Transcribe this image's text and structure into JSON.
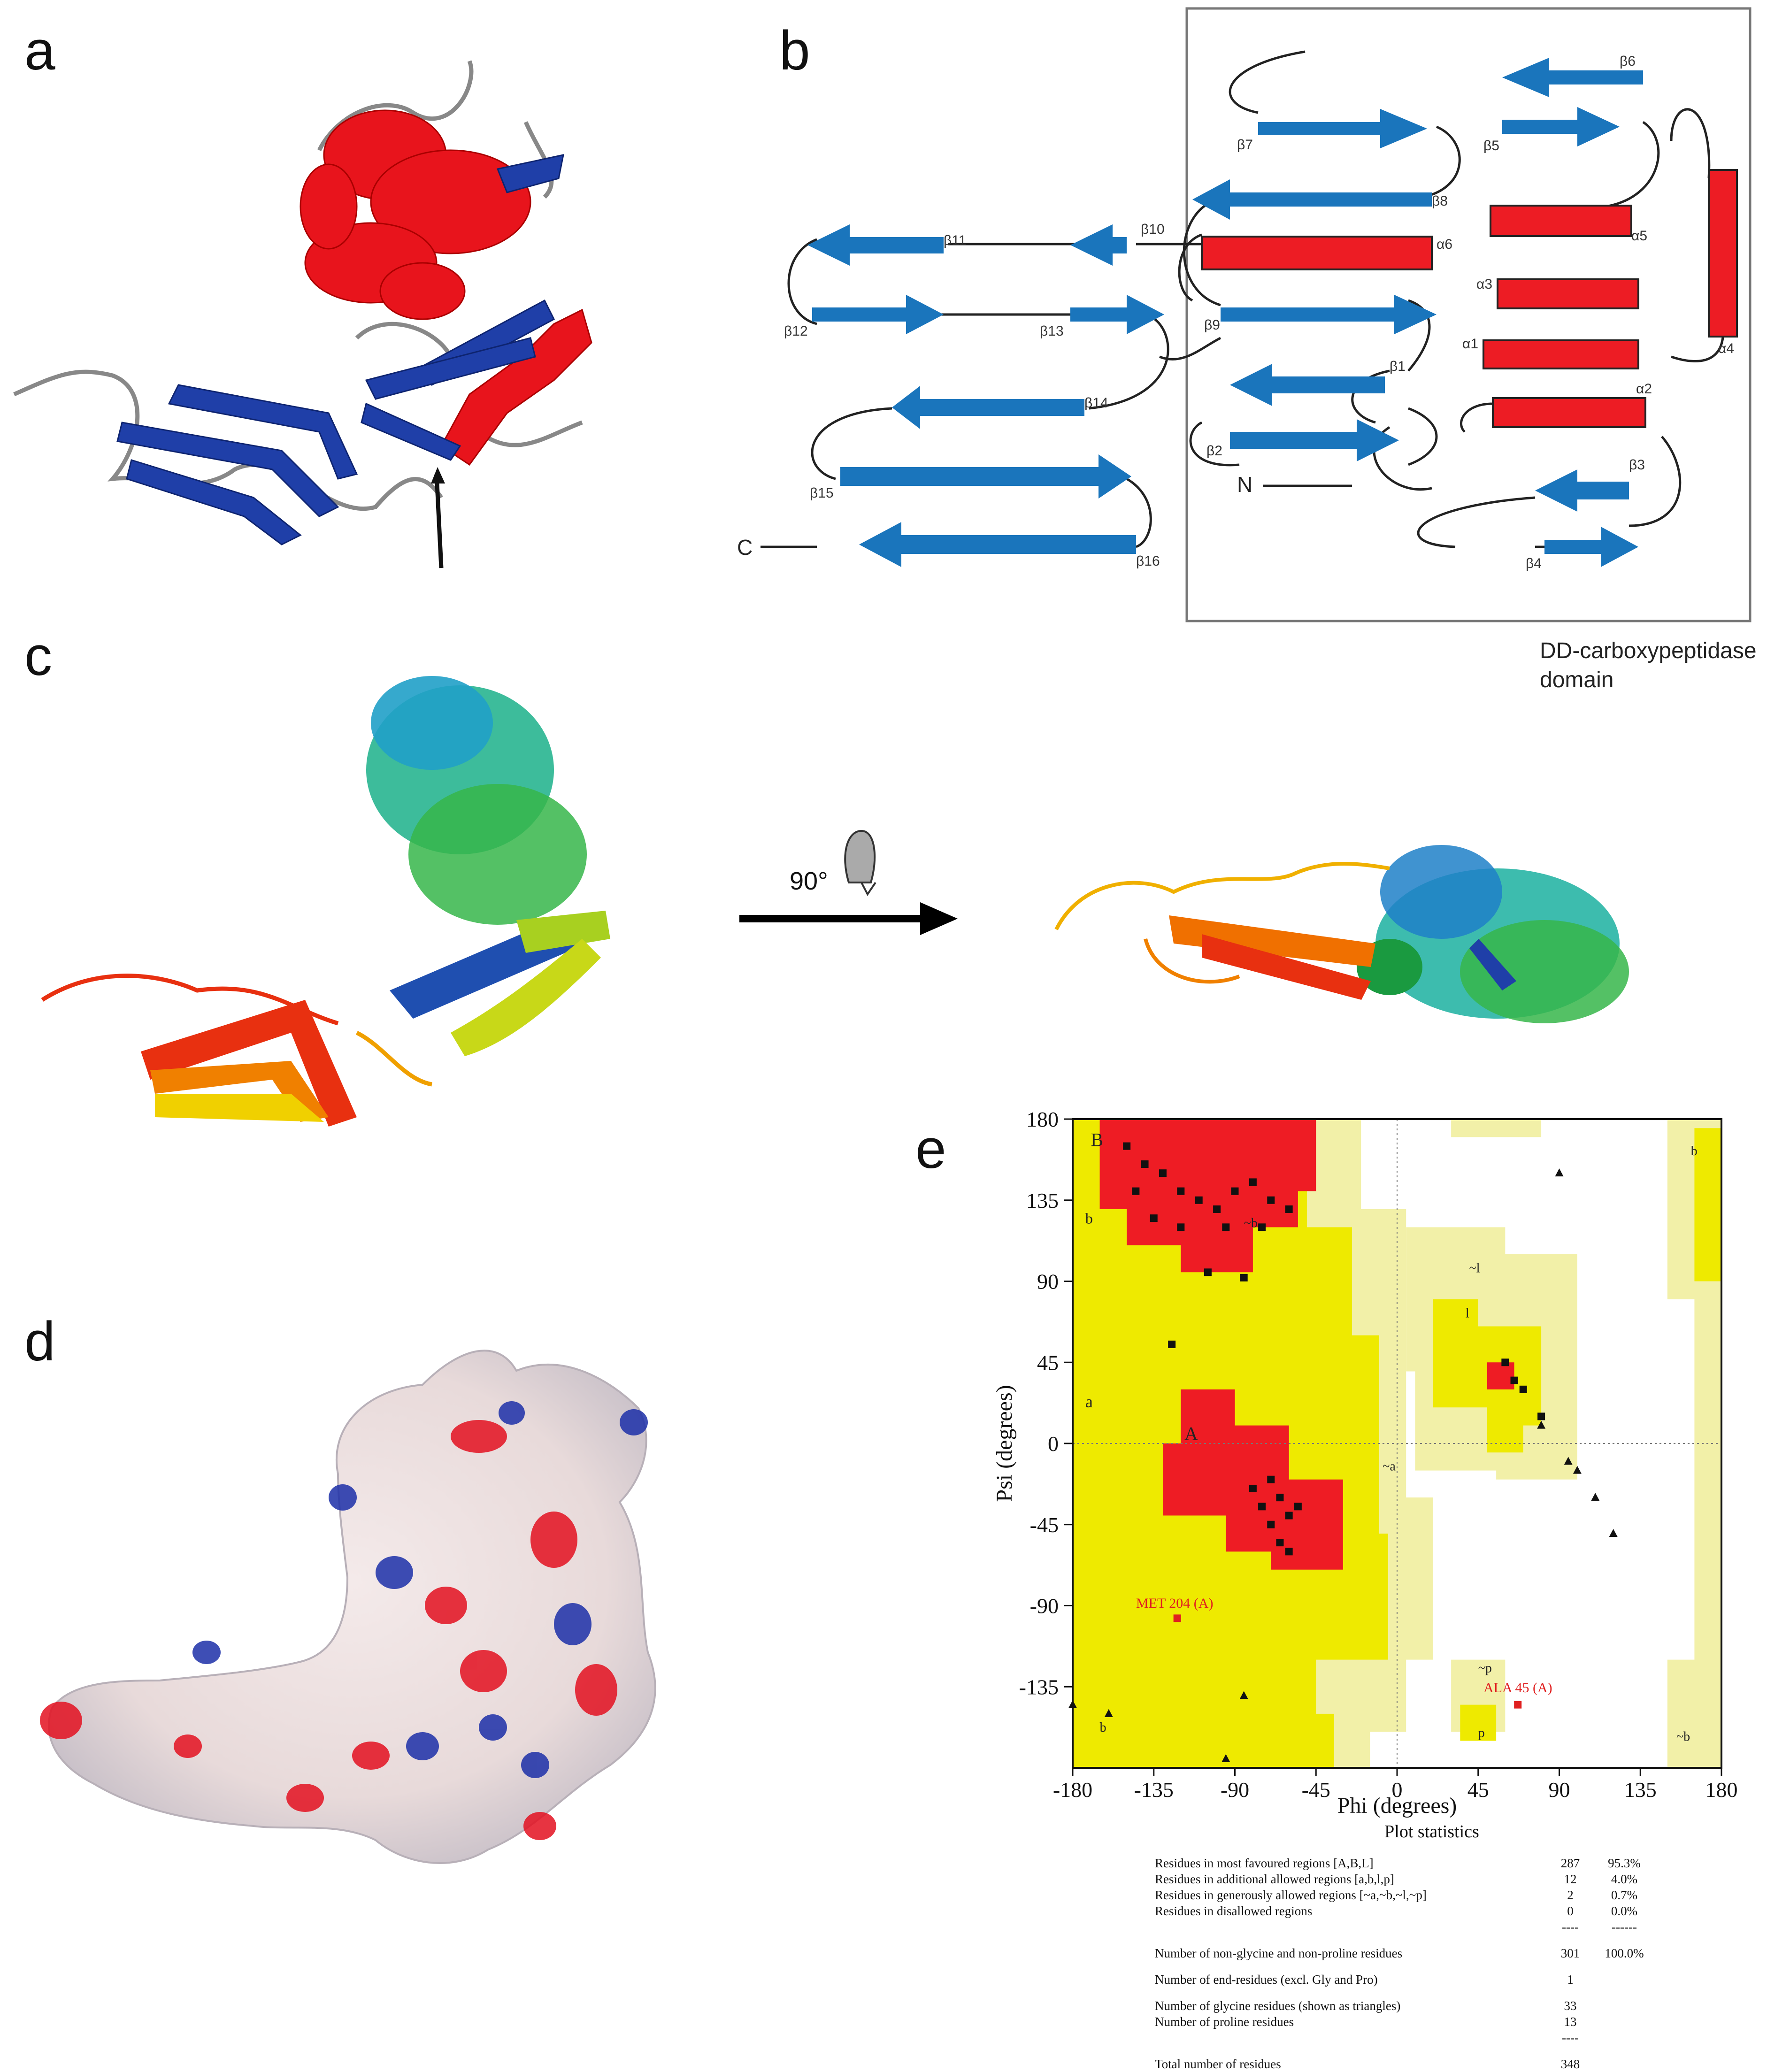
{
  "panels": {
    "a": "a",
    "b": "b",
    "c": "c",
    "d": "d",
    "e": "e"
  },
  "topology": {
    "domain_label_line1": "DD-carboxypeptidase",
    "domain_label_line2": "domain",
    "n_label": "N",
    "c_label": "C",
    "strands": [
      "β1",
      "β2",
      "β3",
      "β4",
      "β5",
      "β6",
      "β7",
      "β8",
      "β9",
      "β10",
      "β11",
      "β12",
      "β13",
      "β14",
      "β15",
      "β16"
    ],
    "helices": [
      "α1",
      "α2",
      "α3",
      "α4",
      "α5",
      "α6"
    ],
    "colors": {
      "strand": "#1a75bc",
      "helix": "#ed1c24"
    }
  },
  "rotation": {
    "label": "90°"
  },
  "ramachandran": {
    "xlabel": "Phi (degrees)",
    "ylabel": "Psi (degrees)",
    "xticks": [
      "-180",
      "-135",
      "-90",
      "-45",
      "0",
      "45",
      "90",
      "135",
      "180"
    ],
    "yticks": [
      "180",
      "135",
      "90",
      "45",
      "0",
      "-45",
      "-90",
      "-135"
    ],
    "region_labels": [
      "B",
      "b",
      "~b",
      "a",
      "A",
      "~a",
      "~l",
      "l",
      "~p",
      "p",
      "b",
      "~b",
      "b"
    ],
    "annotations": [
      "MET 204 (A)",
      "ALA 45 (A)"
    ],
    "colors": {
      "core": "#ee1c24",
      "allowed": "#eeea00",
      "generous": "#f2f0a8",
      "disallowed": "#ffffff"
    }
  },
  "chart_data": {
    "type": "scatter",
    "title": "",
    "xlabel": "Phi (degrees)",
    "ylabel": "Psi (degrees)",
    "xlim": [
      -180,
      180
    ],
    "ylim": [
      -180,
      180
    ],
    "series": [
      {
        "name": "",
        "marker": "square",
        "points": [
          [
            -150,
            165
          ],
          [
            -140,
            155
          ],
          [
            -130,
            150
          ],
          [
            -120,
            140
          ],
          [
            -110,
            135
          ],
          [
            -135,
            125
          ],
          [
            -100,
            130
          ],
          [
            -90,
            140
          ],
          [
            -80,
            145
          ],
          [
            -70,
            135
          ],
          [
            -60,
            130
          ],
          [
            -75,
            120
          ],
          [
            -95,
            120
          ],
          [
            -120,
            120
          ],
          [
            -145,
            140
          ],
          [
            -105,
            95
          ],
          [
            -85,
            92
          ],
          [
            -125,
            55
          ],
          [
            -65,
            -30
          ],
          [
            -70,
            -45
          ],
          [
            -60,
            -40
          ],
          [
            -75,
            -35
          ],
          [
            -65,
            -55
          ],
          [
            -80,
            -25
          ],
          [
            -55,
            -35
          ],
          [
            -70,
            -20
          ],
          [
            -60,
            -60
          ],
          [
            60,
            45
          ],
          [
            65,
            35
          ],
          [
            70,
            30
          ],
          [
            80,
            15
          ]
        ]
      },
      {
        "name": "",
        "marker": "triangle",
        "points": [
          [
            90,
            150
          ],
          [
            110,
            -30
          ],
          [
            95,
            -10
          ],
          [
            100,
            -15
          ],
          [
            80,
            10
          ],
          [
            -160,
            -150
          ],
          [
            -85,
            -140
          ],
          [
            120,
            -50
          ],
          [
            -180,
            -145
          ],
          [
            -95,
            -175
          ]
        ]
      },
      {
        "name": "",
        "marker": "square-red",
        "points": [
          [
            -122,
            -97
          ],
          [
            67,
            -145
          ]
        ]
      }
    ]
  },
  "statistics": {
    "title": "Plot statistics",
    "rows": [
      {
        "label": "Residues in most favoured regions  [A,B,L]",
        "count": "287",
        "pct": "95.3%"
      },
      {
        "label": "Residues in additional allowed regions  [a,b,l,p]",
        "count": "12",
        "pct": "4.0%"
      },
      {
        "label": "Residues in generously allowed regions  [~a,~b,~l,~p]",
        "count": "2",
        "pct": "0.7%"
      },
      {
        "label": "Residues in disallowed regions",
        "count": "0",
        "pct": "0.0%"
      },
      {
        "label": "",
        "count": "----",
        "pct": "------"
      },
      {
        "label": "Number of non-glycine and non-proline residues",
        "count": "301",
        "pct": "100.0%"
      },
      {
        "label": "Number of end-residues (excl. Gly and Pro)",
        "count": "1",
        "pct": ""
      },
      {
        "label": "Number of glycine residues (shown as triangles)",
        "count": "33",
        "pct": ""
      },
      {
        "label": "Number of proline residues",
        "count": "13",
        "pct": ""
      },
      {
        "label": "",
        "count": "----",
        "pct": ""
      },
      {
        "label": "Total number of residues",
        "count": "348",
        "pct": ""
      }
    ]
  }
}
